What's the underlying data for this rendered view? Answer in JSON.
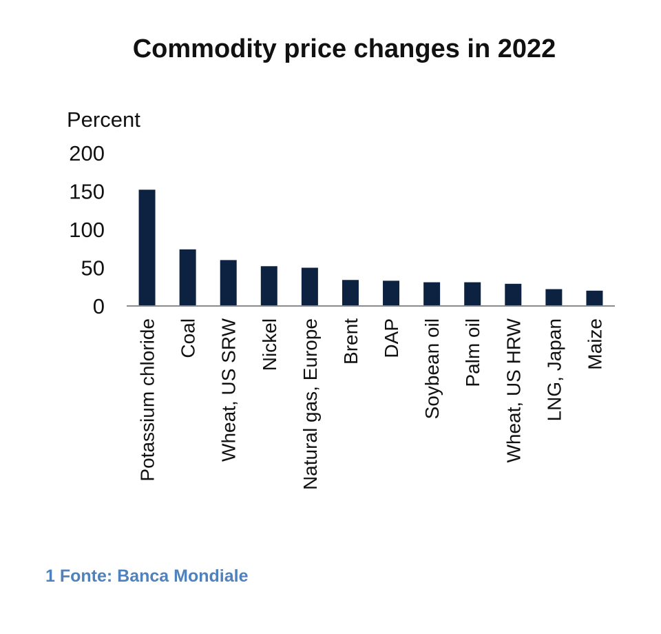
{
  "chart_data": {
    "type": "bar",
    "title": "Commodity price changes in 2022",
    "ylabel": "Percent",
    "xlabel": "",
    "ylim": [
      0,
      200
    ],
    "yticks": [
      0,
      50,
      100,
      150,
      200
    ],
    "grid": false,
    "categories": [
      "Potassium chloride",
      "Coal",
      "Wheat, US SRW",
      "Nickel",
      "Natural gas, Europe",
      "Brent",
      "DAP",
      "Soybean oil",
      "Palm oil",
      "Wheat, US HRW",
      "LNG, Japan",
      "Maize"
    ],
    "values": [
      152,
      74,
      60,
      52,
      50,
      34,
      33,
      31,
      31,
      29,
      22,
      20
    ],
    "bar_color": "#0d2240"
  },
  "caption": "1 Fonte: Banca Mondiale"
}
